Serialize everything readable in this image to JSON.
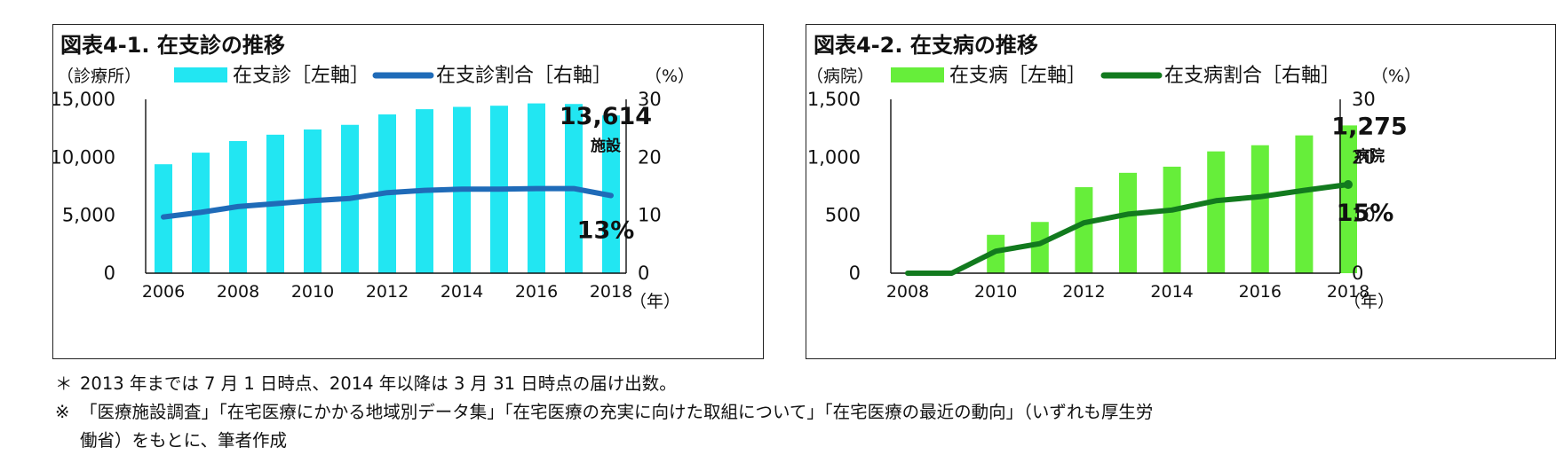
{
  "chart_data": [
    {
      "type": "bar",
      "title": "図表4-1. 在支診の推移",
      "left_unit": "（診療所）",
      "right_unit": "（%）",
      "x_unit": "（年）",
      "legend": {
        "bar_label": "在支診［左軸］",
        "line_label": "在支診割合［右軸］",
        "placement": "top"
      },
      "categories": [
        "2006",
        "2007",
        "2008",
        "2009",
        "2010",
        "2011",
        "2012",
        "2013",
        "2014",
        "2015",
        "2016",
        "2017",
        "2018"
      ],
      "x_tick_labels": [
        "2006",
        "2008",
        "2010",
        "2012",
        "2014",
        "2016",
        "2018"
      ],
      "series": [
        {
          "name": "在支診［左軸］",
          "axis": "left",
          "type": "bar",
          "values": [
            9400,
            10400,
            11400,
            11950,
            12400,
            12800,
            13700,
            14150,
            14350,
            14450,
            14650,
            14600,
            13614
          ]
        },
        {
          "name": "在支診割合［右軸］",
          "axis": "right",
          "type": "line",
          "values": [
            9.7,
            10.5,
            11.5,
            12.0,
            12.5,
            12.9,
            13.9,
            14.3,
            14.5,
            14.5,
            14.6,
            14.6,
            13.4
          ]
        }
      ],
      "ylim_left": [
        0,
        15000
      ],
      "ylim_right": [
        0,
        30
      ],
      "left_tick_labels": [
        "0",
        "5,000",
        "10,000",
        "15,000"
      ],
      "right_tick_labels": [
        "0",
        "10",
        "20",
        "30"
      ],
      "left_tick_values": [
        0,
        5000,
        10000,
        15000
      ],
      "right_tick_values": [
        0,
        10,
        20,
        30
      ],
      "annotations": {
        "value": "13,614",
        "unit": "施設",
        "pct": "13%"
      },
      "colors": {
        "bar": "#22e6f2",
        "line": "#1f6bb8",
        "pct_text": "#1f5aa6"
      },
      "grid": false
    },
    {
      "type": "bar",
      "title": "図表4-2. 在支病の推移",
      "left_unit": "（病院）",
      "right_unit": "（%）",
      "x_unit": "（年）",
      "legend": {
        "bar_label": "在支病［左軸］",
        "line_label": "在支病割合［右軸］",
        "placement": "top"
      },
      "categories": [
        "2008",
        "2009",
        "2010",
        "2011",
        "2012",
        "2013",
        "2014",
        "2015",
        "2016",
        "2017",
        "2018"
      ],
      "x_tick_labels": [
        "2008",
        "2010",
        "2012",
        "2014",
        "2016",
        "2018"
      ],
      "series": [
        {
          "name": "在支病［左軸］",
          "axis": "left",
          "type": "bar",
          "values": [
            0,
            0,
            331,
            442,
            742,
            866,
            919,
            1051,
            1104,
            1189,
            1275
          ]
        },
        {
          "name": "在支病割合［右軸］",
          "axis": "right",
          "type": "line",
          "values": [
            0,
            0,
            3.8,
            5.1,
            8.7,
            10.2,
            10.9,
            12.5,
            13.2,
            14.3,
            15.3
          ]
        }
      ],
      "ylim_left": [
        0,
        1500
      ],
      "ylim_right": [
        0,
        30
      ],
      "left_tick_labels": [
        "0",
        "500",
        "1,000",
        "1,500"
      ],
      "right_tick_labels": [
        "0",
        "10",
        "20",
        "30"
      ],
      "left_tick_values": [
        0,
        500,
        1000,
        1500
      ],
      "right_tick_values": [
        0,
        10,
        20,
        30
      ],
      "annotations": {
        "value": "1,275",
        "unit": "病院",
        "pct": "15%"
      },
      "colors": {
        "bar": "#66ee3a",
        "line": "#127a1e",
        "pct_text": "#1d9a2a"
      },
      "grid": false
    }
  ],
  "notes": {
    "note1_mark": "＊",
    "note1": "2013 年までは 7 月 1 日時点、2014 年以降は 3 月 31 日時点の届け出数。",
    "note2_mark": "※",
    "note2_line1": "「医療施設調査」「在宅医療にかかる地域別データ集」「在宅医療の充実に向けた取組について」「在宅医療の最近の動向」（いずれも厚生労",
    "note2_line2": "働省）をもとに、筆者作成"
  }
}
